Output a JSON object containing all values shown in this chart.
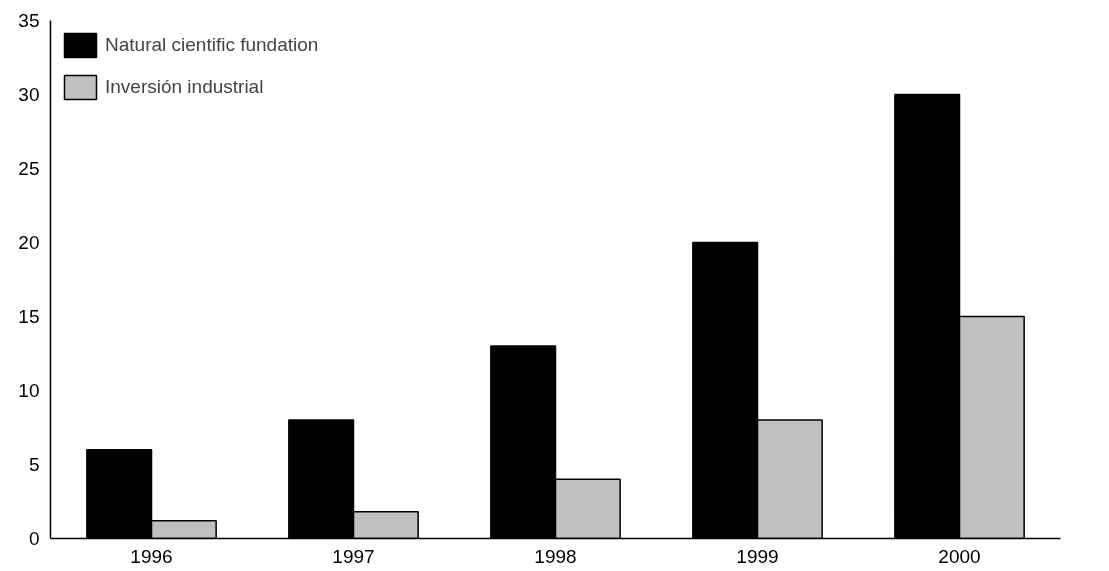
{
  "chart_data": {
    "type": "bar",
    "categories": [
      "1996",
      "1997",
      "1998",
      "1999",
      "2000"
    ],
    "series": [
      {
        "name": "Natural cientific fundation",
        "color": "#000000",
        "values": [
          6,
          8,
          13,
          20,
          30
        ]
      },
      {
        "name": "Inversión industrial",
        "color": "#c0c0c0",
        "values": [
          1.2,
          1.8,
          4,
          8,
          15
        ]
      }
    ],
    "ylim": [
      0,
      35
    ],
    "yticks": [
      0,
      5,
      10,
      15,
      20,
      25,
      30,
      35
    ],
    "grid": false,
    "legend": "top left"
  }
}
